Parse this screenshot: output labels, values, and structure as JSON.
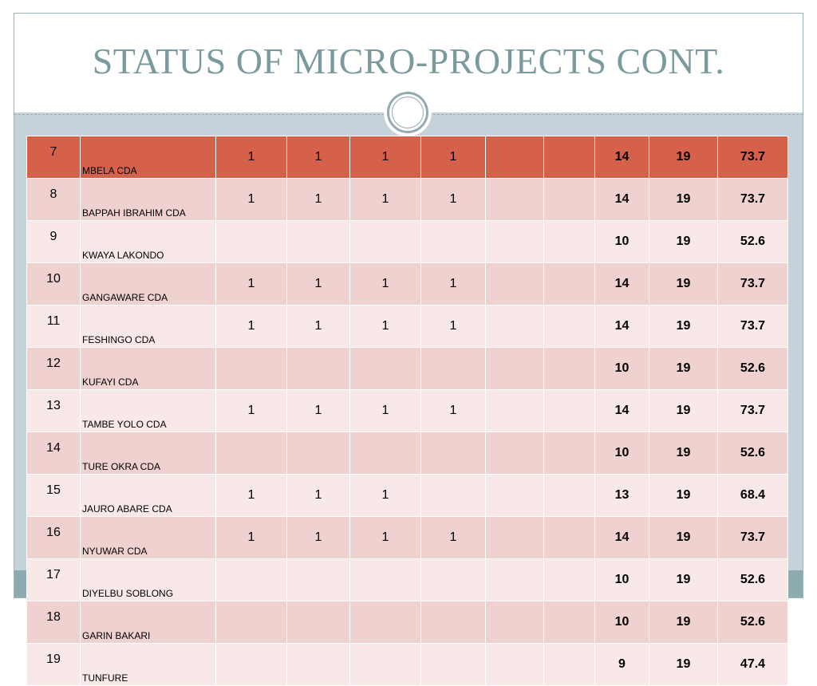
{
  "slide": {
    "title": "STATUS OF MICRO-PROJECTS CONT."
  },
  "colors": {
    "title": "#7b9a9e",
    "header_row": "#d5614a",
    "row_even": "#efd1cf",
    "row_odd": "#f8e9e8",
    "frame": "#c5d2d9",
    "band": "#8dacaf"
  },
  "table": {
    "rows": [
      {
        "no": "7",
        "name": "MBELA  CDA",
        "c1": "1",
        "c2": "1",
        "c3": "1",
        "c4": "1",
        "c5": "",
        "c6": "",
        "total": "14",
        "max": "19",
        "pct": "73.7"
      },
      {
        "no": "8",
        "name": "BAPPAH IBRAHIM  CDA",
        "c1": "1",
        "c2": "1",
        "c3": "1",
        "c4": "1",
        "c5": "",
        "c6": "",
        "total": "14",
        "max": "19",
        "pct": "73.7"
      },
      {
        "no": "9",
        "name": "KWAYA LAKONDO",
        "c1": "",
        "c2": "",
        "c3": "",
        "c4": "",
        "c5": "",
        "c6": "",
        "total": "10",
        "max": "19",
        "pct": "52.6"
      },
      {
        "no": "10",
        "name": "GANGAWARE CDA",
        "c1": "1",
        "c2": "1",
        "c3": "1",
        "c4": "1",
        "c5": "",
        "c6": "",
        "total": "14",
        "max": "19",
        "pct": "73.7"
      },
      {
        "no": "11",
        "name": "FESHINGO CDA",
        "c1": "1",
        "c2": "1",
        "c3": "1",
        "c4": "1",
        "c5": "",
        "c6": "",
        "total": "14",
        "max": "19",
        "pct": "73.7"
      },
      {
        "no": "12",
        "name": "KUFAYI CDA",
        "c1": "",
        "c2": "",
        "c3": "",
        "c4": "",
        "c5": "",
        "c6": "",
        "total": "10",
        "max": "19",
        "pct": "52.6"
      },
      {
        "no": "13",
        "name": "TAMBE YOLO  CDA",
        "c1": "1",
        "c2": "1",
        "c3": "1",
        "c4": "1",
        "c5": "",
        "c6": "",
        "total": "14",
        "max": "19",
        "pct": "73.7"
      },
      {
        "no": "14",
        "name": "TURE OKRA CDA",
        "c1": "",
        "c2": "",
        "c3": "",
        "c4": "",
        "c5": "",
        "c6": "",
        "total": "10",
        "max": "19",
        "pct": "52.6"
      },
      {
        "no": "15",
        "name": "JAURO ABARE CDA",
        "c1": "1",
        "c2": "1",
        "c3": "1",
        "c4": "",
        "c5": "",
        "c6": "",
        "total": "13",
        "max": "19",
        "pct": "68.4"
      },
      {
        "no": "16",
        "name": "NYUWAR CDA",
        "c1": "1",
        "c2": "1",
        "c3": "1",
        "c4": "1",
        "c5": "",
        "c6": "",
        "total": "14",
        "max": "19",
        "pct": "73.7"
      },
      {
        "no": "17",
        "name": "DIYELBU SOBLONG",
        "c1": "",
        "c2": "",
        "c3": "",
        "c4": "",
        "c5": "",
        "c6": "",
        "total": "10",
        "max": "19",
        "pct": "52.6"
      },
      {
        "no": "18",
        "name": "GARIN BAKARI",
        "c1": "",
        "c2": "",
        "c3": "",
        "c4": "",
        "c5": "",
        "c6": "",
        "total": "10",
        "max": "19",
        "pct": "52.6"
      },
      {
        "no": "19",
        "name": "TUNFURE",
        "c1": "",
        "c2": "",
        "c3": "",
        "c4": "",
        "c5": "",
        "c6": "",
        "total": "9",
        "max": "19",
        "pct": "47.4"
      }
    ]
  }
}
